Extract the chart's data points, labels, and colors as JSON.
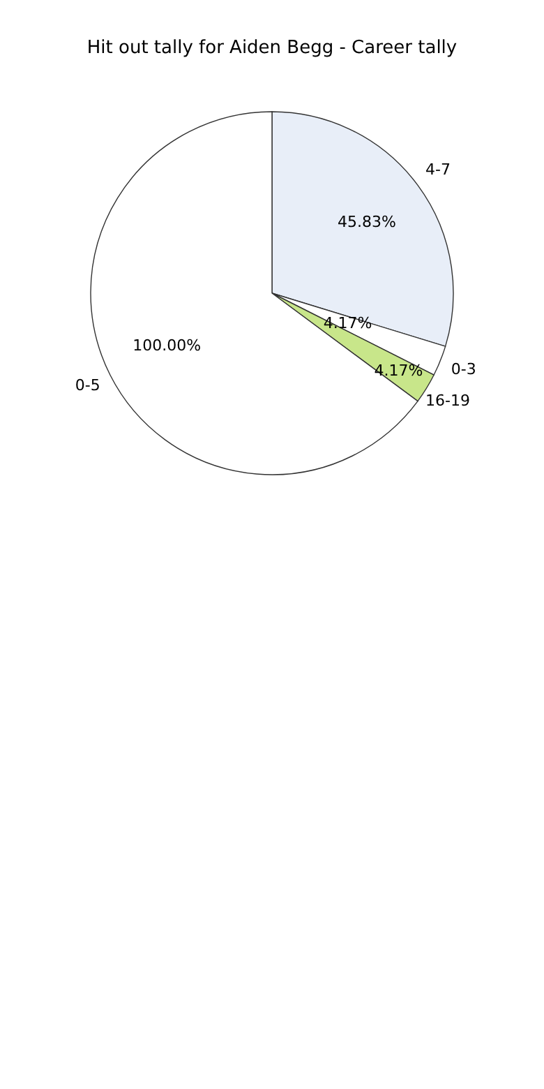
{
  "chart_data": {
    "type": "pie",
    "title": "Hit out tally for Aiden Begg - Career tally",
    "categories": [
      "4-7",
      "0-3",
      "16-19",
      "0-5"
    ],
    "values": [
      45.83,
      4.17,
      4.17,
      100.0
    ],
    "colors": [
      "#e8eef8",
      "#ffffff",
      "#c8e68a",
      "#ffffff"
    ],
    "value_labels": [
      "45.83%",
      "4.17%",
      "4.17%",
      "100.00%"
    ]
  }
}
